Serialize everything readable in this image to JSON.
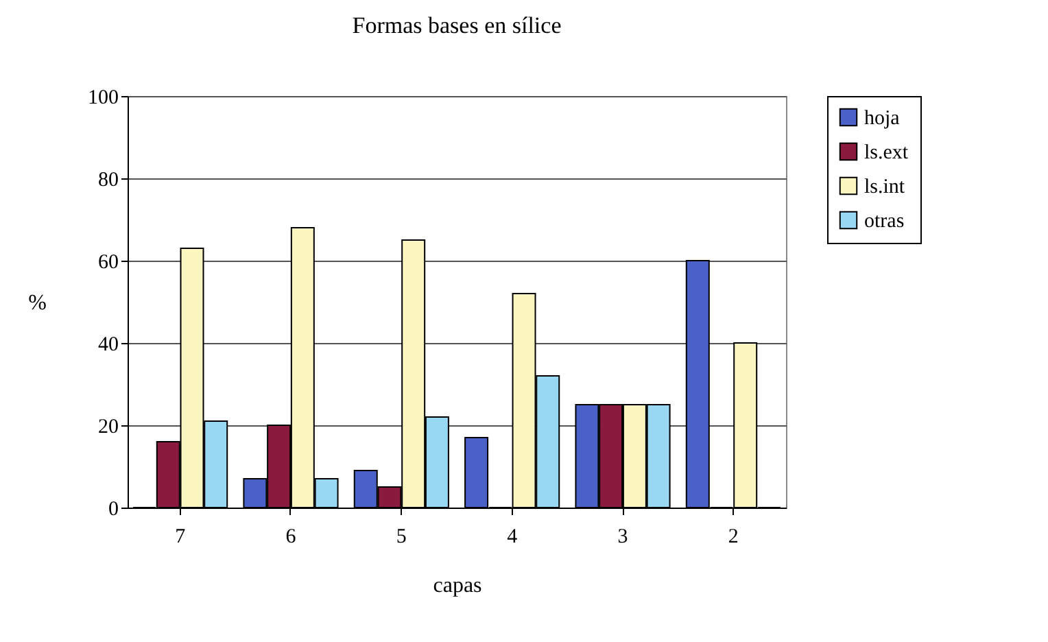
{
  "chart_data": {
    "type": "bar",
    "title": "Formas bases en sílice",
    "xlabel": "capas",
    "ylabel": "%",
    "categories": [
      "7",
      "6",
      "5",
      "4",
      "3",
      "2"
    ],
    "series": [
      {
        "name": "hoja",
        "color": "#4a62c8",
        "values": [
          0,
          7,
          9,
          17,
          25,
          60
        ]
      },
      {
        "name": "ls.ext",
        "color": "#8b1a3f",
        "values": [
          16,
          20,
          5,
          0,
          25,
          0
        ]
      },
      {
        "name": "ls.int",
        "color": "#fbf6c0",
        "values": [
          63,
          68,
          65,
          52,
          25,
          40
        ]
      },
      {
        "name": "otras",
        "color": "#99d8f2",
        "values": [
          21,
          7,
          22,
          32,
          25,
          0
        ]
      }
    ],
    "ylim": [
      0,
      100
    ],
    "yticks": [
      0,
      20,
      40,
      60,
      80,
      100
    ],
    "grid": "y",
    "legend": "right"
  }
}
